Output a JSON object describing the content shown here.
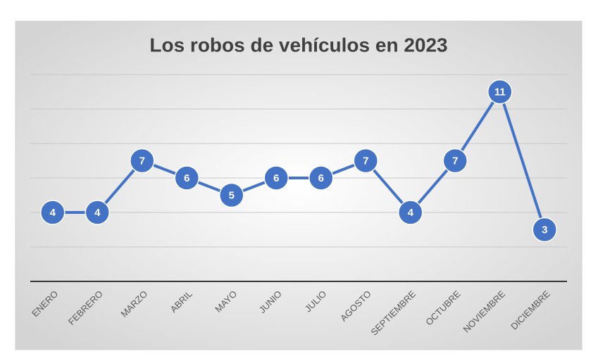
{
  "chart_data": {
    "type": "line",
    "title": "Los robos de vehículos en 2023",
    "categories": [
      "ENERO",
      "FEBRERO",
      "MARZO",
      "ABRIL",
      "MAYO",
      "JUNIO",
      "JULIO",
      "AGOSTO",
      "SEPTIEMBRE",
      "OCTUBRE",
      "NOVIEMBRE",
      "DICIEMBRE"
    ],
    "values": [
      4,
      4,
      7,
      6,
      5,
      6,
      6,
      7,
      4,
      7,
      11,
      3
    ],
    "color": "#4472c4",
    "ylim": [
      0,
      12
    ],
    "yticks": [
      0,
      2,
      4,
      6,
      8,
      10,
      12
    ],
    "show_ytick_labels": false,
    "grid": true,
    "data_labels": true
  }
}
